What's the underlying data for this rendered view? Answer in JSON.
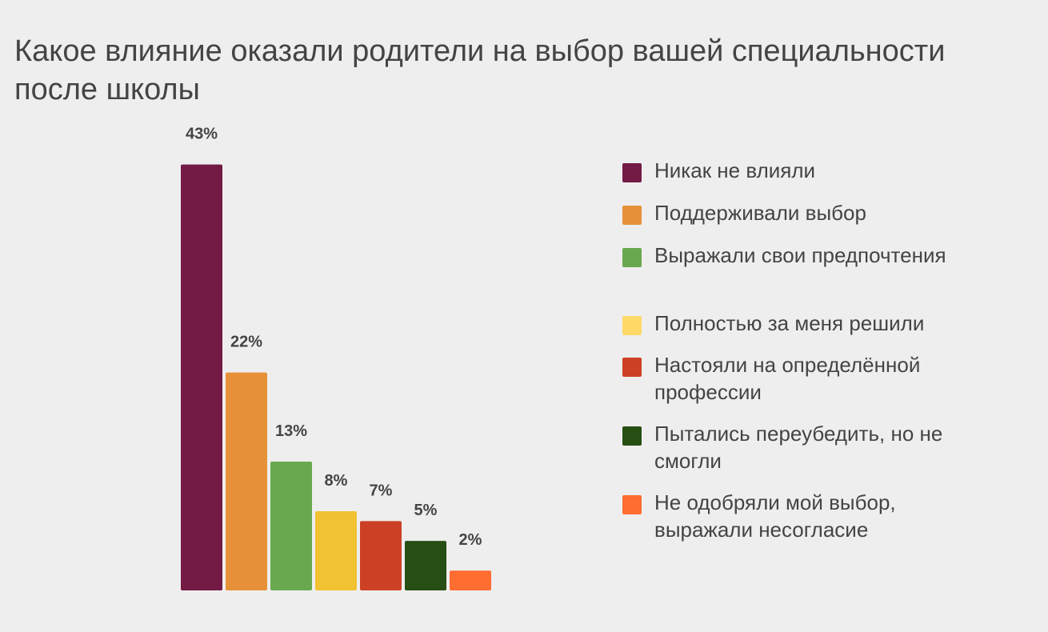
{
  "chart_data": {
    "type": "bar",
    "title": "Какое влияние оказали родители на выбор вашей специальности после школы",
    "categories": [
      "Никак не влияли",
      "Поддерживали выбор",
      "Выражали свои предпочтения",
      "Полностью за меня решили",
      "Настояли на определённой профессии",
      "Пытались переубедить, но не смогли",
      "Не одобряли мой выбор, выражали несогласие"
    ],
    "values": [
      43,
      22,
      13,
      8,
      7,
      5,
      2
    ],
    "data_labels": [
      "43%",
      "22%",
      "13%",
      "8%",
      "7%",
      "5%",
      "2%"
    ],
    "bar_colors": [
      "#731a45",
      "#e69138",
      "#6aa84f",
      "#f1c232",
      "#cc4125",
      "#274e13",
      "#ff6d31"
    ],
    "legend_colors": [
      "#731a45",
      "#e69138",
      "#6aa84f",
      "#ffd966",
      "#cc4125",
      "#274e13",
      "#ff6d31"
    ],
    "xlabel": "",
    "ylabel": "",
    "ylim": [
      0,
      45
    ],
    "grid": false,
    "legend_position": "right"
  }
}
